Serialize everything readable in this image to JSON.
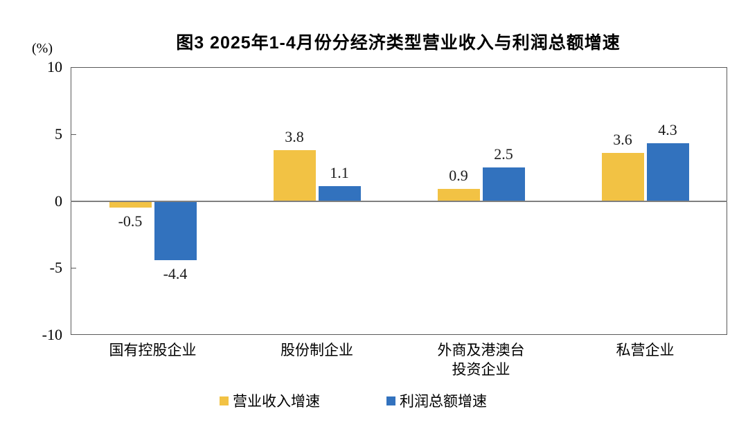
{
  "chart_data": {
    "type": "bar",
    "title": "图3 2025年1-4月份分经济类型营业收入与利润总额增速",
    "unit_label": "(%)",
    "categories": [
      "国有控股企业",
      "股份制企业",
      "外商及港澳台\n投资企业",
      "私营企业"
    ],
    "series": [
      {
        "name": "营业收入增速",
        "color": "#F2C244",
        "values": [
          -0.5,
          3.8,
          0.9,
          3.6
        ]
      },
      {
        "name": "利润总额增速",
        "color": "#3272BE",
        "values": [
          -4.4,
          1.1,
          2.5,
          4.3
        ]
      }
    ],
    "data_labels": {
      "营业收入增速": [
        "-0.5",
        "3.8",
        "0.9",
        "3.6"
      ],
      "利润总额增速": [
        "-4.4",
        "1.1",
        "2.5",
        "4.3"
      ]
    },
    "ylim": [
      -10,
      10
    ],
    "yticks": [
      10,
      5,
      0,
      -5,
      -10
    ],
    "grid": false,
    "legend_position": "bottom"
  }
}
